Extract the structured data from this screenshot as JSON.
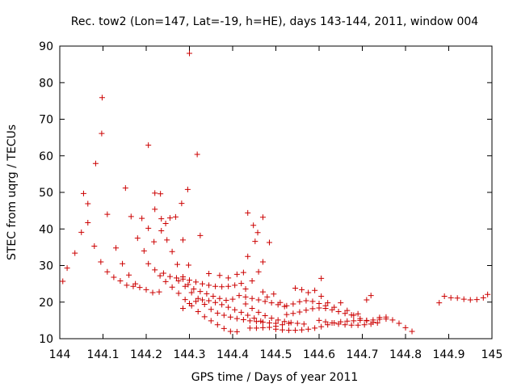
{
  "chart_data": {
    "type": "scatter",
    "title": "Rec. tow2 (Lon=147, Lat=-19, h=HE), days 143-144, 2011, window 004",
    "xlabel": "GPS time / Days of year 2011",
    "ylabel": "STEC from uqrg / TECUs",
    "xlim": [
      144,
      145
    ],
    "ylim": [
      10,
      90
    ],
    "xticks": [
      "144",
      "144.1",
      "144.2",
      "144.3",
      "144.4",
      "144.5",
      "144.6",
      "144.7",
      "144.8",
      "144.9",
      "145"
    ],
    "yticks": [
      "10",
      "20",
      "30",
      "40",
      "50",
      "60",
      "70",
      "80",
      "90"
    ],
    "grid": false,
    "marker": "+",
    "color": "#cc0000",
    "points": [
      [
        144.007,
        25.7
      ],
      [
        144.017,
        29.3
      ],
      [
        144.035,
        33.4
      ],
      [
        144.05,
        39.1
      ],
      [
        144.065,
        41.7
      ],
      [
        144.08,
        35.3
      ],
      [
        144.095,
        31.0
      ],
      [
        144.11,
        28.3
      ],
      [
        144.125,
        26.8
      ],
      [
        144.14,
        25.8
      ],
      [
        144.155,
        24.6
      ],
      [
        144.17,
        24.3
      ],
      [
        144.185,
        24.0
      ],
      [
        144.2,
        23.4
      ],
      [
        144.215,
        22.6
      ],
      [
        144.23,
        22.8
      ],
      [
        144.055,
        49.7
      ],
      [
        144.065,
        46.9
      ],
      [
        144.083,
        57.9
      ],
      [
        144.097,
        66.1
      ],
      [
        144.098,
        75.9
      ],
      [
        144.11,
        44.0
      ],
      [
        144.13,
        34.8
      ],
      [
        144.145,
        30.5
      ],
      [
        144.16,
        27.4
      ],
      [
        144.175,
        25.0
      ],
      [
        144.152,
        51.2
      ],
      [
        144.165,
        43.4
      ],
      [
        144.18,
        37.5
      ],
      [
        144.19,
        42.9
      ],
      [
        144.205,
        40.2
      ],
      [
        144.218,
        36.5
      ],
      [
        144.205,
        62.9
      ],
      [
        144.22,
        49.8
      ],
      [
        144.233,
        49.6
      ],
      [
        144.22,
        45.4
      ],
      [
        144.235,
        42.8
      ],
      [
        144.245,
        41.5
      ],
      [
        144.255,
        43.0
      ],
      [
        144.268,
        43.3
      ],
      [
        144.282,
        47.0
      ],
      [
        144.296,
        50.8
      ],
      [
        144.285,
        37.0
      ],
      [
        144.298,
        30.1
      ],
      [
        144.325,
        38.2
      ],
      [
        144.195,
        34.0
      ],
      [
        144.205,
        30.5
      ],
      [
        144.22,
        28.8
      ],
      [
        144.232,
        27.2
      ],
      [
        144.245,
        25.6
      ],
      [
        144.26,
        24.1
      ],
      [
        144.275,
        22.4
      ],
      [
        144.29,
        20.7
      ],
      [
        144.305,
        19.0
      ],
      [
        144.32,
        17.4
      ],
      [
        144.335,
        16.0
      ],
      [
        144.35,
        14.9
      ],
      [
        144.365,
        13.8
      ],
      [
        144.38,
        12.8
      ],
      [
        144.395,
        12.0
      ],
      [
        144.41,
        11.9
      ],
      [
        144.235,
        39.5
      ],
      [
        144.248,
        37.0
      ],
      [
        144.26,
        33.8
      ],
      [
        144.272,
        30.3
      ],
      [
        144.285,
        26.9
      ],
      [
        144.297,
        24.8
      ],
      [
        144.31,
        23.6
      ],
      [
        144.325,
        22.9
      ],
      [
        144.34,
        22.3
      ],
      [
        144.355,
        21.6
      ],
      [
        144.37,
        21.0
      ],
      [
        144.385,
        20.5
      ],
      [
        144.4,
        20.8
      ],
      [
        144.415,
        21.8
      ],
      [
        144.43,
        23.6
      ],
      [
        144.445,
        25.8
      ],
      [
        144.46,
        28.3
      ],
      [
        144.47,
        31.0
      ],
      [
        144.485,
        36.3
      ],
      [
        144.24,
        27.9
      ],
      [
        144.255,
        27.0
      ],
      [
        144.27,
        26.6
      ],
      [
        144.285,
        26.3
      ],
      [
        144.3,
        26.0
      ],
      [
        144.315,
        25.5
      ],
      [
        144.33,
        25.0
      ],
      [
        144.345,
        24.6
      ],
      [
        144.36,
        24.3
      ],
      [
        144.375,
        24.2
      ],
      [
        144.39,
        24.3
      ],
      [
        144.405,
        24.6
      ],
      [
        144.42,
        25.1
      ],
      [
        144.275,
        25.8
      ],
      [
        144.29,
        24.3
      ],
      [
        144.305,
        22.6
      ],
      [
        144.32,
        21.0
      ],
      [
        144.335,
        19.4
      ],
      [
        144.35,
        18.0
      ],
      [
        144.365,
        17.0
      ],
      [
        144.38,
        16.4
      ],
      [
        144.395,
        15.9
      ],
      [
        144.41,
        15.5
      ],
      [
        144.425,
        15.2
      ],
      [
        144.44,
        14.9
      ],
      [
        144.455,
        14.7
      ],
      [
        144.47,
        14.5
      ],
      [
        144.485,
        14.3
      ],
      [
        144.5,
        14.2
      ],
      [
        144.285,
        18.3
      ],
      [
        144.3,
        19.6
      ],
      [
        144.315,
        20.2
      ],
      [
        144.33,
        20.6
      ],
      [
        144.345,
        20.4
      ],
      [
        144.36,
        19.9
      ],
      [
        144.375,
        19.3
      ],
      [
        144.39,
        18.6
      ],
      [
        144.405,
        17.9
      ],
      [
        144.42,
        17.2
      ],
      [
        144.435,
        16.4
      ],
      [
        144.45,
        15.6
      ],
      [
        144.465,
        14.8
      ],
      [
        144.3,
        88.0
      ],
      [
        144.318,
        60.4
      ],
      [
        144.345,
        27.8
      ],
      [
        144.37,
        27.3
      ],
      [
        144.39,
        26.6
      ],
      [
        144.41,
        27.6
      ],
      [
        144.425,
        28.1
      ],
      [
        144.435,
        44.4
      ],
      [
        144.435,
        32.5
      ],
      [
        144.448,
        41.0
      ],
      [
        144.458,
        39.0
      ],
      [
        144.47,
        43.2
      ],
      [
        144.452,
        36.6
      ],
      [
        144.43,
        19.5
      ],
      [
        144.445,
        18.3
      ],
      [
        144.46,
        17.2
      ],
      [
        144.475,
        16.3
      ],
      [
        144.49,
        15.6
      ],
      [
        144.505,
        15.1
      ],
      [
        144.52,
        14.7
      ],
      [
        144.535,
        14.4
      ],
      [
        144.55,
        14.2
      ],
      [
        144.565,
        14.0
      ],
      [
        144.44,
        12.9
      ],
      [
        144.455,
        12.9
      ],
      [
        144.47,
        13.0
      ],
      [
        144.485,
        13.1
      ],
      [
        144.5,
        13.4
      ],
      [
        144.515,
        13.8
      ],
      [
        144.53,
        14.2
      ],
      [
        144.43,
        21.4
      ],
      [
        144.445,
        21.0
      ],
      [
        144.46,
        20.6
      ],
      [
        144.475,
        20.2
      ],
      [
        144.49,
        19.8
      ],
      [
        144.505,
        19.3
      ],
      [
        144.52,
        18.8
      ],
      [
        144.47,
        22.8
      ],
      [
        144.48,
        21.4
      ],
      [
        144.495,
        22.2
      ],
      [
        144.51,
        19.9
      ],
      [
        144.5,
        12.6
      ],
      [
        144.515,
        12.4
      ],
      [
        144.53,
        12.3
      ],
      [
        144.545,
        12.3
      ],
      [
        144.56,
        12.4
      ],
      [
        144.575,
        12.6
      ],
      [
        144.59,
        12.9
      ],
      [
        144.605,
        13.3
      ],
      [
        144.62,
        13.8
      ],
      [
        144.635,
        14.3
      ],
      [
        144.65,
        14.6
      ],
      [
        144.665,
        14.8
      ],
      [
        144.68,
        14.9
      ],
      [
        144.695,
        15.0
      ],
      [
        144.71,
        15.0
      ],
      [
        144.725,
        15.1
      ],
      [
        144.74,
        15.3
      ],
      [
        144.755,
        15.4
      ],
      [
        144.77,
        15.1
      ],
      [
        144.785,
        14.2
      ],
      [
        144.8,
        13.0
      ],
      [
        144.815,
        12.0
      ],
      [
        144.525,
        16.6
      ],
      [
        144.54,
        16.9
      ],
      [
        144.555,
        17.3
      ],
      [
        144.57,
        17.8
      ],
      [
        144.585,
        18.2
      ],
      [
        144.6,
        18.4
      ],
      [
        144.615,
        18.3
      ],
      [
        144.63,
        17.9
      ],
      [
        144.645,
        17.4
      ],
      [
        144.66,
        16.9
      ],
      [
        144.675,
        16.5
      ],
      [
        144.545,
        23.8
      ],
      [
        144.56,
        23.4
      ],
      [
        144.575,
        22.6
      ],
      [
        144.59,
        23.2
      ],
      [
        144.605,
        21.6
      ],
      [
        144.605,
        26.5
      ],
      [
        144.62,
        19.8
      ],
      [
        144.635,
        18.6
      ],
      [
        144.525,
        19.0
      ],
      [
        144.54,
        19.5
      ],
      [
        144.555,
        20.1
      ],
      [
        144.57,
        20.4
      ],
      [
        144.585,
        20.2
      ],
      [
        144.6,
        19.6
      ],
      [
        144.615,
        19.0
      ],
      [
        144.6,
        15.0
      ],
      [
        144.615,
        14.6
      ],
      [
        144.63,
        14.3
      ],
      [
        144.645,
        14.0
      ],
      [
        144.66,
        13.8
      ],
      [
        144.675,
        13.7
      ],
      [
        144.69,
        13.7
      ],
      [
        144.705,
        13.8
      ],
      [
        144.72,
        14.0
      ],
      [
        144.735,
        14.3
      ],
      [
        144.65,
        19.8
      ],
      [
        144.665,
        17.7
      ],
      [
        144.68,
        16.4
      ],
      [
        144.695,
        15.5
      ],
      [
        144.71,
        14.9
      ],
      [
        144.725,
        14.5
      ],
      [
        144.71,
        20.6
      ],
      [
        144.72,
        21.8
      ],
      [
        144.69,
        16.8
      ],
      [
        144.74,
        15.8
      ],
      [
        144.755,
        15.9
      ],
      [
        144.878,
        19.8
      ],
      [
        144.89,
        21.6
      ],
      [
        144.905,
        21.2
      ],
      [
        144.92,
        21.1
      ],
      [
        144.935,
        20.8
      ],
      [
        144.95,
        20.6
      ],
      [
        144.965,
        20.7
      ],
      [
        144.98,
        21.2
      ],
      [
        144.99,
        22.1
      ]
    ]
  }
}
